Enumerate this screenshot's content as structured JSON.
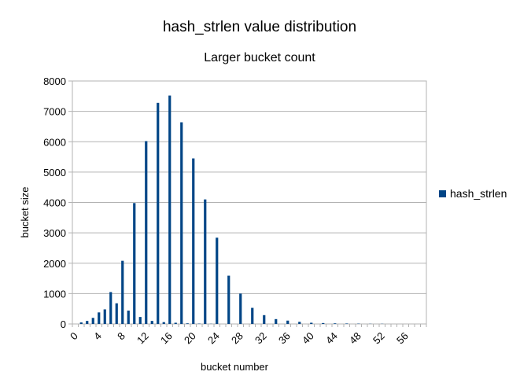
{
  "chart_data": {
    "type": "bar",
    "title": "hash_strlen value distribution",
    "subtitle": "Larger bucket count",
    "xlabel": "bucket number",
    "ylabel": "bucket size",
    "ylim": [
      0,
      8000
    ],
    "yticks": [
      0,
      1000,
      2000,
      3000,
      4000,
      5000,
      6000,
      7000,
      8000
    ],
    "xticks": [
      "0",
      "4",
      "8",
      "12",
      "16",
      "20",
      "24",
      "28",
      "32",
      "36",
      "40",
      "44",
      "48",
      "52",
      "56"
    ],
    "grid": true,
    "legend_position": "right",
    "x": [
      0,
      1,
      2,
      3,
      4,
      5,
      6,
      7,
      8,
      9,
      10,
      11,
      12,
      13,
      14,
      15,
      16,
      17,
      18,
      19,
      20,
      21,
      22,
      23,
      24,
      25,
      26,
      27,
      28,
      29,
      30,
      31,
      32,
      33,
      34,
      35,
      36,
      37,
      38,
      39,
      40,
      41,
      42,
      43,
      44,
      45,
      46,
      47,
      48,
      49,
      50,
      51,
      52,
      53,
      54,
      55,
      56,
      57,
      58,
      59
    ],
    "series": [
      {
        "name": "hash_strlen",
        "color": "#004586",
        "values": [
          0,
          50,
          100,
          200,
          380,
          480,
          1050,
          680,
          2080,
          440,
          3980,
          230,
          6020,
          100,
          7280,
          60,
          7520,
          40,
          6640,
          20,
          5450,
          10,
          4100,
          5,
          2840,
          0,
          1590,
          0,
          1000,
          0,
          530,
          0,
          290,
          0,
          160,
          0,
          110,
          0,
          70,
          0,
          40,
          0,
          30,
          0,
          20,
          0,
          15,
          0,
          10,
          0,
          5,
          0,
          5,
          0,
          0,
          0,
          0,
          0,
          0,
          0
        ]
      }
    ]
  }
}
